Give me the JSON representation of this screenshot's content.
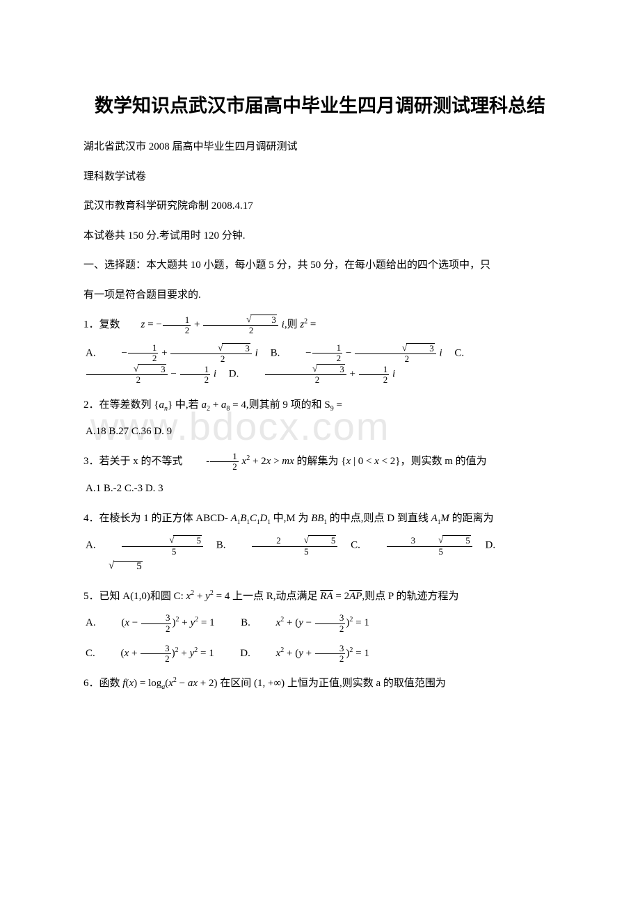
{
  "title": "数学知识点武汉市届高中毕业生四月调研测试理科总结",
  "line1": "湖北省武汉市 2008 届高中毕业生四月调研测试",
  "line2": "理科数学试卷",
  "line3": "武汉市教育科学研究院命制 2008.4.17",
  "line4": "本试卷共 150 分.考试用时 120 分钟.",
  "section1": "一、选择题：本大题共 10 小题，每小题 5 分，共 50 分，在每小题给出的四个选项中，只",
  "section1b": "有一项是符合题目要求的.",
  "q1_pre": "1．复数",
  "q1_post": "则",
  "q2_pre": "2．在等差数列",
  "q2_mid1": "中,若",
  "q2_mid2": ",则其前 9 项的和",
  "q2_opts": "A.18 B.27 C.36 D. 9",
  "q3_pre": "3．若关于 x 的不等式",
  "q3_mid": "的解集为",
  "q3_post": "，则实数 m 的值为",
  "q3_opts": "A.1 B.-2 C.-3  D. 3",
  "q4_pre": "4．在棱长为 1 的正方体 ABCD-",
  "q4_mid1": "中,M 为",
  "q4_mid2": "的中点,则点 D 到直线",
  "q4_post": "的距离为",
  "q5_pre": "5．已知 A(1,0)和圆 C:",
  "q5_mid1": "上一点 R,动点满足",
  "q5_mid2": ",则点 P 的轨迹方程为",
  "q6_pre": "6．函数",
  "q6_mid": "在区间",
  "q6_post": "上恒为正值,则实数 a 的取值范围为",
  "watermark": "www.bdocx.com",
  "a": "A.",
  "b": "B.",
  "c": "C.",
  "d": "D."
}
